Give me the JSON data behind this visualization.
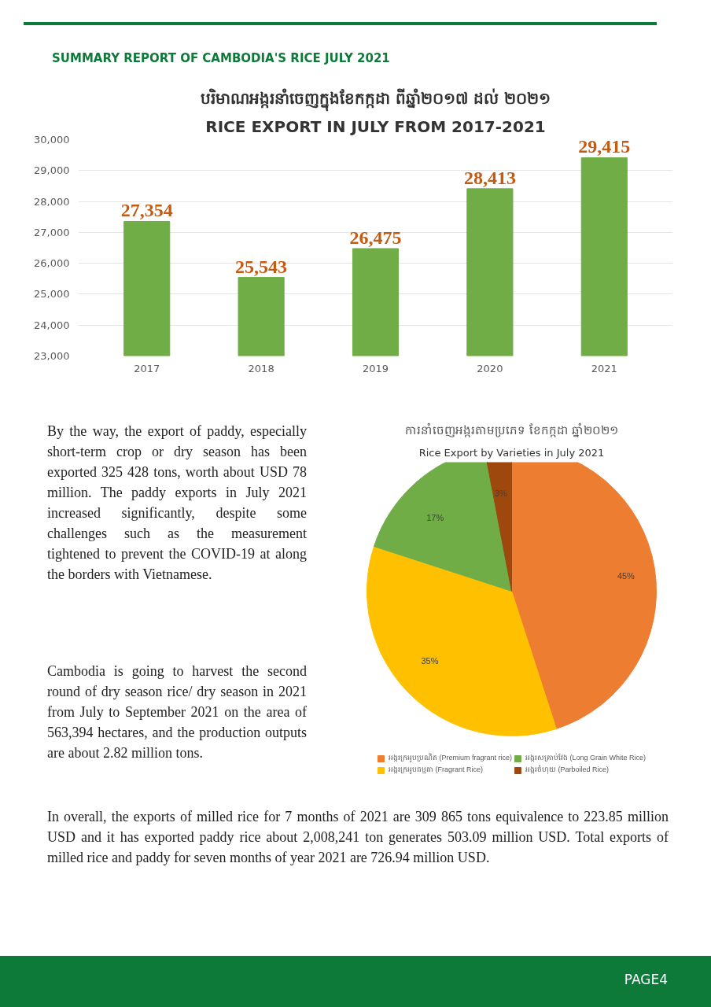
{
  "chart_data": [
    {
      "type": "bar",
      "title": "បរិមាណអង្ករនាំចេញក្នុងខែកក្កដា ពីឆ្នាំ២០១៧ ដល់ ២០២១",
      "subtitle": "RICE EXPORT IN JULY FROM 2017-2021",
      "categories": [
        "2017",
        "2018",
        "2019",
        "2020",
        "2021"
      ],
      "values": [
        27354,
        25543,
        26475,
        28413,
        29415
      ],
      "value_labels": [
        "27,354",
        "25,543",
        "26,475",
        "28,413",
        "29,415"
      ],
      "color": "#70ad47",
      "ylim": [
        23000,
        30000
      ],
      "yticks": [
        {
          "value": 23000,
          "label": "23,000"
        },
        {
          "value": 24000,
          "label": "24,000"
        },
        {
          "value": 25000,
          "label": "25,000"
        },
        {
          "value": 26000,
          "label": "26,000"
        },
        {
          "value": 27000,
          "label": "27,000"
        },
        {
          "value": 28000,
          "label": "28,000"
        },
        {
          "value": 29000,
          "label": "29,000"
        },
        {
          "value": 30000,
          "label": "30,000"
        }
      ],
      "grid": "y",
      "annotations": [
        "SUMMARY REPORT OF CAMBODIA'S RICE  JULY 2021"
      ]
    },
    {
      "type": "pie",
      "title": "ការនាំចេញអង្ករតាមប្រភេទ ខែកក្កដា ឆ្នាំ២០២១",
      "subtitle": "Rice Export by Varieties in July 2021",
      "categories": [
        "អង្ករក្រអូបប្រណិត (Premium fragrant rice)",
        "អង្ករក្រអូបធម្មតា (Fragrant Rice)",
        "អង្ករសគ្រាប់វែង (Long Grain White Rice)",
        "អង្ករចំហុយ (Parboiled Rice)"
      ],
      "values": [
        45,
        35,
        17,
        3
      ],
      "value_labels": [
        "45%",
        "35%",
        "17%",
        "3%"
      ],
      "colors": [
        "#ed7d31",
        "#ffc000",
        "#70ad47",
        "#9e480e"
      ],
      "legend": "bottom",
      "annotations": [
        "By the way, the export of paddy, especially short-term crop or dry season has been exported 325 428 tons, worth about USD 78 million. The paddy exports in July 2021 increased significantly, despite some challenges such as the measurement tightened to prevent the COVID-19 at along the borders with Vietnamese.",
        "Cambodia is going to harvest the second round of dry season rice/ dry season in 2021 from July to September 2021 on the area of 563,394 hectares, and the production outputs are about 2.82 million tons.",
        "In overall, the exports of milled rice for 7 months of 2021 are 309 865 tons equivalence to 223.85 million USD and it has exported paddy rice about 2,008,241 ton generates 503.09 million USD. Total exports of milled rice and paddy for seven months of year 2021 are 726.94 million USD.",
        "PAGE4"
      ]
    }
  ]
}
